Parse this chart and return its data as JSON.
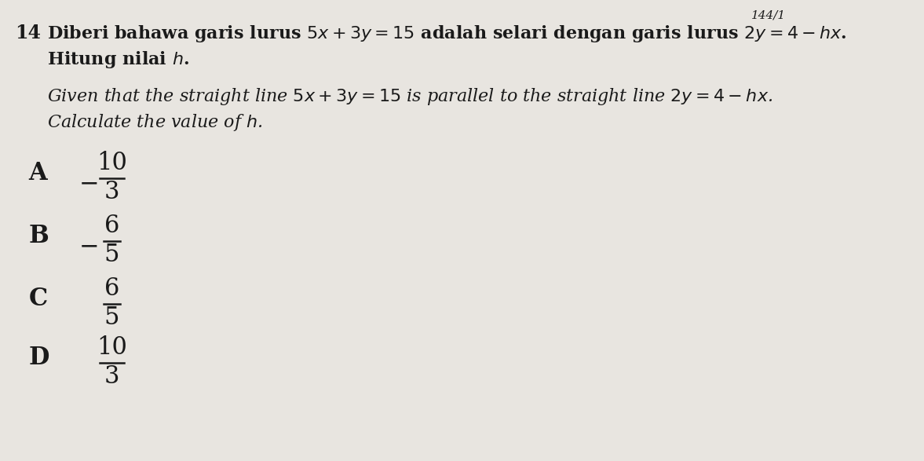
{
  "background_color": "#e8e5e0",
  "question_number": "14",
  "page_number": "144/1",
  "text_color": "#1a1a1a",
  "malay_bold": true,
  "answer_labels": [
    "A",
    "B",
    "C",
    "D"
  ],
  "answer_signs": [
    "-",
    "-",
    "",
    ""
  ],
  "answer_numerators": [
    "10",
    "6",
    "6",
    "10"
  ],
  "answer_denominators": [
    "3",
    "5",
    "5",
    "3"
  ]
}
